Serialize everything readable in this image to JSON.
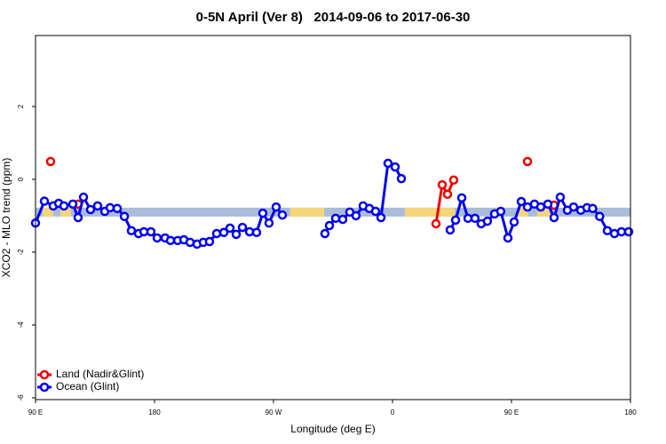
{
  "chart_data": {
    "type": "line",
    "title": "0-5N April (Ver 8)   2014-09-06 to 2017-06-30",
    "x_label": "Longitude (deg E)",
    "y_label": "XCO2 - MLO trend (ppm)",
    "xlim": [
      90,
      540
    ],
    "ylim": [
      -6.05,
      3.95
    ],
    "xticks": [
      {
        "value": 90,
        "label": "90 E"
      },
      180,
      {
        "value": 270,
        "label": "90 W"
      },
      {
        "value": 360,
        "label": "0"
      },
      {
        "value": 450,
        "label": "90 E"
      },
      {
        "value": 540,
        "label": "180"
      }
    ],
    "yticks": [
      -6,
      -4,
      -2,
      0,
      2
    ],
    "grid": false,
    "legend": "bottom-left",
    "band": {
      "y": -0.9,
      "color": "#a9bcd9",
      "land_color": "#f5d57a",
      "land_segments": [
        [
          95.4,
          103.4
        ],
        [
          108.8,
          116.9
        ],
        [
          282.7,
          308.3
        ],
        [
          369.4,
          407
        ],
        [
          454.7,
          462.7
        ],
        [
          469.4,
          479.5
        ]
      ]
    },
    "series": [
      {
        "name": "Land (Nadir&Glint)",
        "color": "#ee0000",
        "x": [
          101.4,
          null,
          122.2,
          null,
          392.9,
          397.6,
          401.6,
          406.3,
          null,
          462.1,
          null,
          482.2
        ],
        "values": [
          0.49,
          null,
          -0.68,
          null,
          -1.22,
          -0.15,
          -0.41,
          -0.02,
          null,
          0.49,
          null,
          -0.71
        ]
      },
      {
        "name": "Ocean (Glint)",
        "color": "#0000ee",
        "x": [
          90,
          96.7,
          103.4,
          107.5,
          111.5,
          118.2,
          122.2,
          126.3,
          131.6,
          137,
          142.4,
          146.4,
          151.8,
          157.2,
          162.5,
          167.9,
          172,
          177.3,
          182,
          188,
          192.1,
          197.5,
          202.2,
          206.9,
          212.2,
          216.9,
          221.6,
          227,
          232.4,
          237.1,
          241.8,
          246.5,
          251.9,
          257.2,
          261.9,
          266.6,
          272,
          276.7,
          null,
          308.9,
          312.3,
          317,
          322.4,
          327.7,
          332.4,
          337.8,
          342.5,
          347.2,
          351.3,
          356.6,
          362,
          366.7,
          null,
          403.6,
          407.7,
          412.4,
          417.1,
          422.4,
          427.1,
          431.8,
          437.2,
          441.9,
          447.3,
          452,
          457.4,
          462.1,
          467.4,
          472.1,
          477.5,
          482.2,
          486.9,
          492.3,
          497,
          502.4,
          507.1,
          511.4,
          516.7,
          522.5,
          527.9,
          533.2,
          538.6
        ],
        "values": [
          -1.2,
          -0.6,
          -0.73,
          -0.66,
          -0.73,
          -0.68,
          -1.05,
          -0.49,
          -0.83,
          -0.73,
          -0.88,
          -0.78,
          -0.8,
          -1.02,
          -1.41,
          -1.49,
          -1.44,
          -1.44,
          -1.61,
          -1.61,
          -1.68,
          -1.68,
          -1.66,
          -1.73,
          -1.78,
          -1.73,
          -1.71,
          -1.49,
          -1.46,
          -1.34,
          -1.51,
          -1.32,
          -1.44,
          -1.46,
          -0.93,
          -1.2,
          -0.76,
          -0.98,
          null,
          -1.49,
          -1.27,
          -1.07,
          -1.1,
          -0.9,
          -1.0,
          -0.73,
          -0.8,
          -0.88,
          -1.05,
          0.44,
          0.34,
          0.02,
          null,
          -1.39,
          -1.12,
          -0.51,
          -1.07,
          -1.07,
          -1.22,
          -1.15,
          -0.95,
          -0.88,
          -1.61,
          -1.17,
          -0.61,
          -0.76,
          -0.68,
          -0.76,
          -0.68,
          -1.05,
          -0.49,
          -0.85,
          -0.76,
          -0.85,
          -0.78,
          -0.8,
          -1.02,
          -1.41,
          -1.49,
          -1.44,
          -1.44
        ]
      }
    ]
  }
}
